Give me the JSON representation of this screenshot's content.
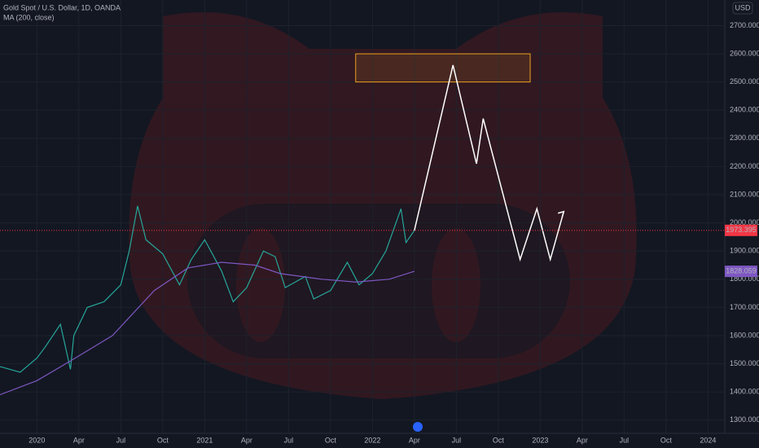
{
  "chart_data": {
    "type": "line",
    "currency": "USD",
    "xlim": [
      2019.78,
      2024.1
    ],
    "ylim": [
      1253,
      2791
    ],
    "xticks": [
      {
        "value": 2020,
        "label": "2020"
      },
      {
        "value": 2020.25,
        "label": "Apr"
      },
      {
        "value": 2020.5,
        "label": "Jul"
      },
      {
        "value": 2020.75,
        "label": "Oct"
      },
      {
        "value": 2021,
        "label": "2021"
      },
      {
        "value": 2021.25,
        "label": "Apr"
      },
      {
        "value": 2021.5,
        "label": "Jul"
      },
      {
        "value": 2021.75,
        "label": "Oct"
      },
      {
        "value": 2022,
        "label": "2022"
      },
      {
        "value": 2022.25,
        "label": "Apr"
      },
      {
        "value": 2022.5,
        "label": "Jul"
      },
      {
        "value": 2022.75,
        "label": "Oct"
      },
      {
        "value": 2023,
        "label": "2023"
      },
      {
        "value": 2023.25,
        "label": "Apr"
      },
      {
        "value": 2023.5,
        "label": "Jul"
      },
      {
        "value": 2023.75,
        "label": "Oct"
      },
      {
        "value": 2024,
        "label": "2024"
      }
    ],
    "yticks": [
      {
        "value": 1300,
        "label": "1300.000"
      },
      {
        "value": 1400,
        "label": "1400.000"
      },
      {
        "value": 1500,
        "label": "1500.000"
      },
      {
        "value": 1600,
        "label": "1600.000"
      },
      {
        "value": 1700,
        "label": "1700.000"
      },
      {
        "value": 1800,
        "label": "1800.000"
      },
      {
        "value": 1900,
        "label": "1900.000"
      },
      {
        "value": 2000,
        "label": "2000.000"
      },
      {
        "value": 2100,
        "label": "2100.000"
      },
      {
        "value": 2200,
        "label": "2200.000"
      },
      {
        "value": 2300,
        "label": "2300.000"
      },
      {
        "value": 2400,
        "label": "2400.000"
      },
      {
        "value": 2500,
        "label": "2500.000"
      },
      {
        "value": 2600,
        "label": "2600.000"
      },
      {
        "value": 2700,
        "label": "2700.000"
      }
    ],
    "grid": true,
    "last_price": 1973.395,
    "ma_last": 1828.059,
    "zone": {
      "x": [
        2021.9,
        2022.94
      ],
      "y": [
        2500,
        2600
      ],
      "color": "#f0a020"
    },
    "series": [
      {
        "name": "Gold Spot / U.S. Dollar, 1D, OANDA",
        "color": "#26a69a",
        "x": [
          2019.78,
          2019.9,
          2020.0,
          2020.05,
          2020.14,
          2020.2,
          2020.22,
          2020.3,
          2020.4,
          2020.5,
          2020.55,
          2020.6,
          2020.65,
          2020.75,
          2020.85,
          2020.92,
          2021.0,
          2021.1,
          2021.17,
          2021.25,
          2021.35,
          2021.42,
          2021.48,
          2021.6,
          2021.65,
          2021.75,
          2021.85,
          2021.92,
          2022.0,
          2022.08,
          2022.17,
          2022.2,
          2022.25
        ],
        "values": [
          1490,
          1470,
          1520,
          1560,
          1640,
          1480,
          1600,
          1700,
          1720,
          1780,
          1900,
          2060,
          1940,
          1890,
          1780,
          1870,
          1940,
          1830,
          1720,
          1770,
          1900,
          1880,
          1770,
          1810,
          1730,
          1760,
          1860,
          1780,
          1820,
          1900,
          2050,
          1930,
          1973.395
        ]
      },
      {
        "name": "MA (200, close)",
        "color": "#7e57c2",
        "x": [
          2019.78,
          2020.0,
          2020.2,
          2020.45,
          2020.7,
          2020.9,
          2021.1,
          2021.3,
          2021.45,
          2021.7,
          2021.9,
          2022.1,
          2022.25
        ],
        "values": [
          1390,
          1440,
          1510,
          1600,
          1760,
          1840,
          1860,
          1850,
          1820,
          1800,
          1790,
          1800,
          1828.059
        ]
      },
      {
        "color": "#ffffff",
        "x": [
          2022.25,
          2022.48,
          2022.62,
          2022.66,
          2022.88,
          2022.98,
          2023.06,
          2023.14
        ],
        "values": [
          1973.395,
          2560,
          2210,
          2370,
          1870,
          2050,
          1870,
          2040
        ]
      }
    ]
  }
}
